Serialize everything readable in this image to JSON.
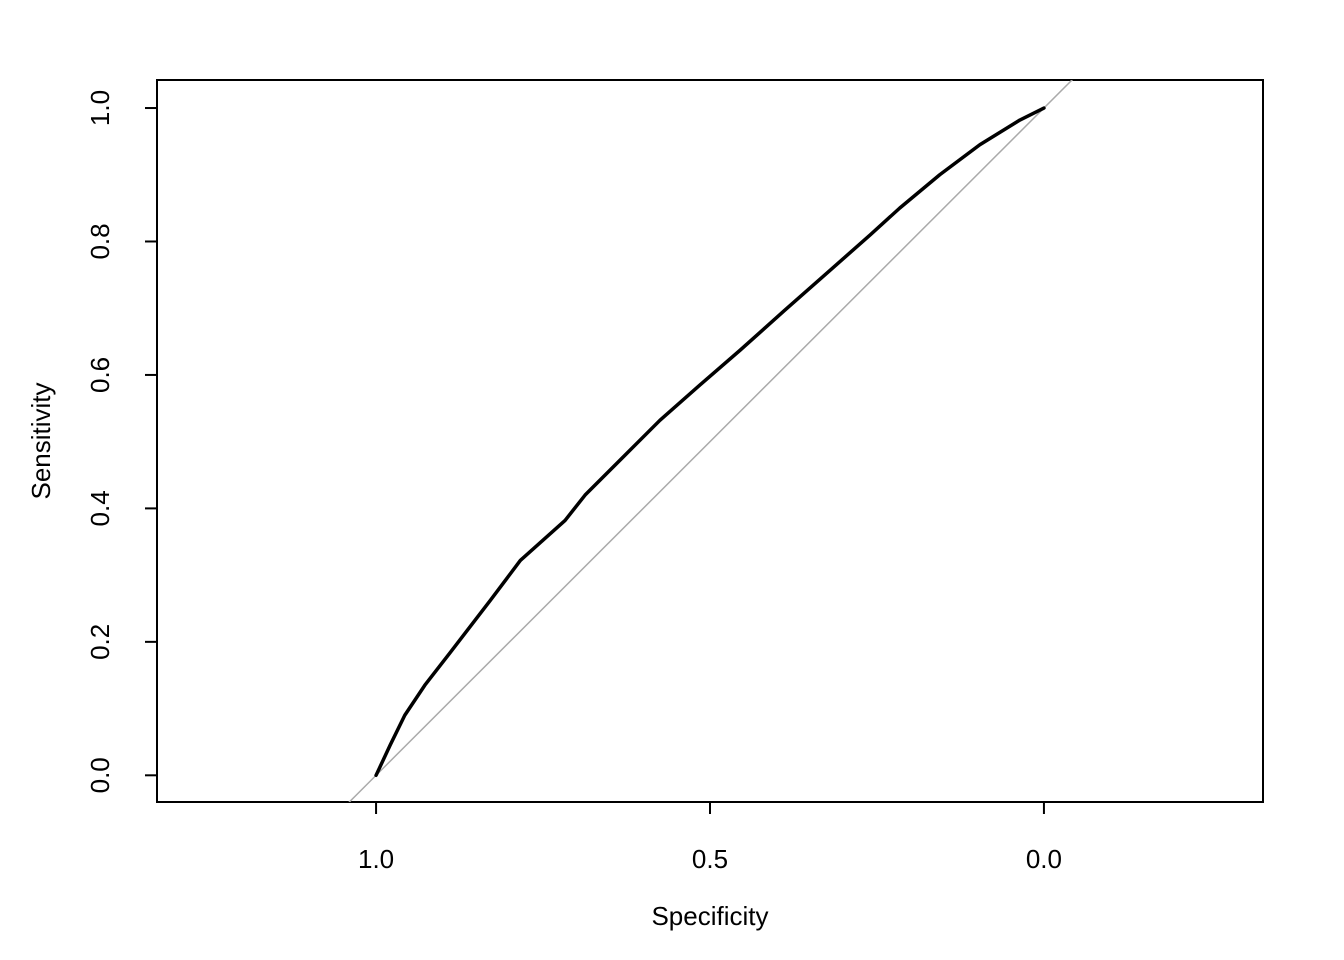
{
  "chart_data": {
    "type": "line",
    "x_label": "Specificity",
    "y_label": "Sensitivity",
    "x": [
      1,
      0.979,
      0.957,
      0.927,
      0.889,
      0.829,
      0.784,
      0.717,
      0.687,
      0.627,
      0.575,
      0.515,
      0.455,
      0.388,
      0.32,
      0.26,
      0.216,
      0.156,
      0.096,
      0.036,
      0
    ],
    "series": [
      {
        "color": "#000000",
        "values": [
          0,
          0.045,
          0.09,
          0.135,
          0.184,
          0.262,
          0.322,
          0.382,
          0.42,
          0.48,
          0.532,
          0.585,
          0.637,
          0.697,
          0.757,
          0.81,
          0.85,
          0.9,
          0.945,
          0.982,
          1
        ]
      }
    ],
    "reference_line": {
      "intercept": 1,
      "slope": -1,
      "color": "#aaaaaa"
    },
    "xlim": [
      1.328,
      -0.328
    ],
    "ylim": [
      -0.04,
      1.042
    ],
    "xticks": [
      {
        "value": 1,
        "label": "1.0"
      },
      0.5,
      {
        "value": 0,
        "label": "0.0"
      }
    ],
    "yticks": [
      {
        "value": 0,
        "label": "0.0"
      },
      0.2,
      0.4,
      0.6,
      0.8,
      {
        "value": 1,
        "label": "1.0"
      }
    ]
  }
}
